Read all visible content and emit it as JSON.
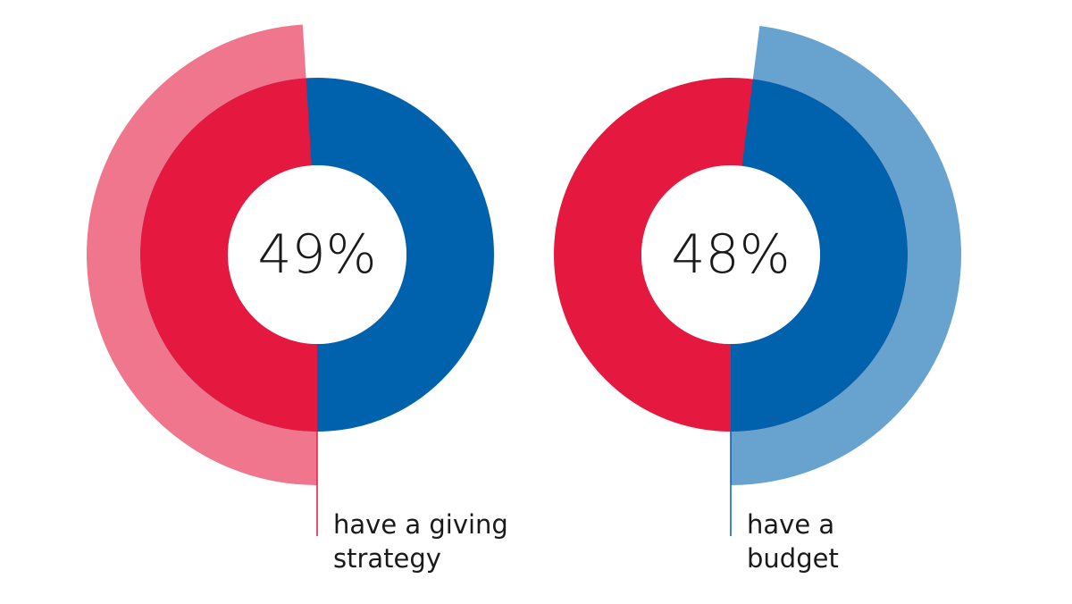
{
  "chart_data": [
    {
      "type": "donut",
      "categories": [
        "have a giving strategy"
      ],
      "values": [
        49
      ],
      "value_labels": [
        "49%"
      ],
      "color": "#e5193f",
      "outer_color": "#f0768d",
      "rest_color": "#0061ad",
      "direction": "clockwise"
    },
    {
      "type": "donut",
      "categories": [
        "have a budget"
      ],
      "values": [
        48
      ],
      "value_labels": [
        "48%"
      ],
      "color": "#0061ad",
      "outer_color": "#68a2cf",
      "rest_color": "#e5193f",
      "direction": "counterclockwise"
    }
  ]
}
